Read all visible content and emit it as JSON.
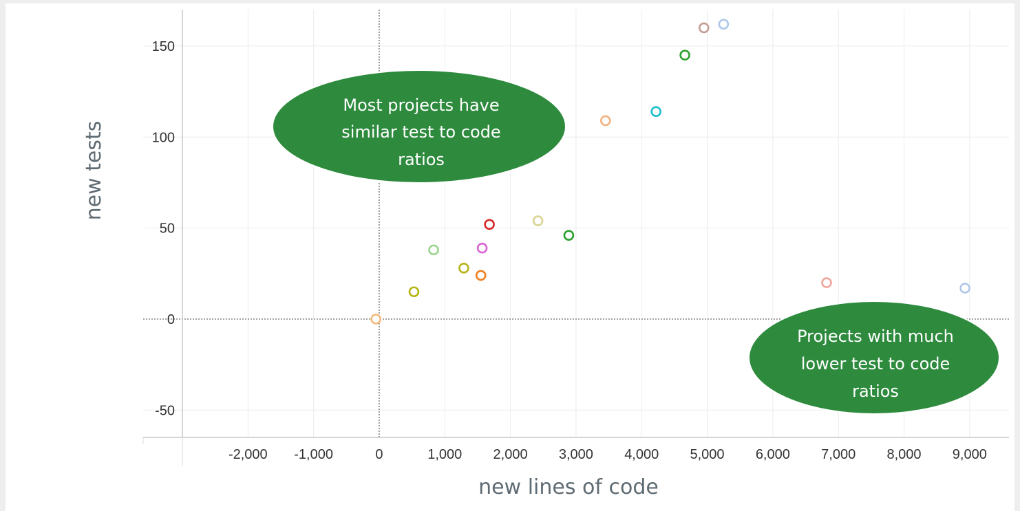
{
  "chart_data": {
    "type": "scatter",
    "xlabel": "new lines of code",
    "ylabel": "new tests",
    "xlim": [
      -3000,
      9600
    ],
    "ylim": [
      -65,
      170
    ],
    "xticks": [
      -2000,
      -1000,
      0,
      1000,
      2000,
      3000,
      4000,
      5000,
      6000,
      7000,
      8000,
      9000
    ],
    "xtick_labels": [
      "-2,000",
      "-1,000",
      "0",
      "1,000",
      "2,000",
      "3,000",
      "4,000",
      "5,000",
      "6,000",
      "7,000",
      "8,000",
      "9,000"
    ],
    "yticks": [
      -50,
      0,
      50,
      100,
      150
    ],
    "ytick_labels": [
      "-50",
      "0",
      "50",
      "100",
      "150"
    ],
    "grid": true,
    "points": [
      {
        "x": -50,
        "y": 0,
        "color": "#f5b87a"
      },
      {
        "x": 530,
        "y": 15,
        "color": "#b5b312"
      },
      {
        "x": 830,
        "y": 38,
        "color": "#9bd48c"
      },
      {
        "x": 1290,
        "y": 28,
        "color": "#b6b316"
      },
      {
        "x": 1550,
        "y": 24,
        "color": "#ef7f1a"
      },
      {
        "x": 1570,
        "y": 39,
        "color": "#d765d4"
      },
      {
        "x": 1680,
        "y": 52,
        "color": "#d62728"
      },
      {
        "x": 2420,
        "y": 54,
        "color": "#d8d393"
      },
      {
        "x": 2890,
        "y": 46,
        "color": "#2ca02c"
      },
      {
        "x": 3450,
        "y": 109,
        "color": "#f3b17e"
      },
      {
        "x": 4220,
        "y": 114,
        "color": "#17becf"
      },
      {
        "x": 4660,
        "y": 145,
        "color": "#2ca02c"
      },
      {
        "x": 4950,
        "y": 160,
        "color": "#c49c94"
      },
      {
        "x": 5250,
        "y": 162,
        "color": "#aec7e8"
      },
      {
        "x": 6820,
        "y": 20,
        "color": "#f0a59a"
      },
      {
        "x": 8930,
        "y": 17,
        "color": "#aec7e8"
      }
    ],
    "annotations": [
      {
        "lines": [
          "Most projects have",
          "similar test to code",
          "ratios"
        ]
      },
      {
        "lines": [
          "Projects with much",
          "lower test to code",
          "ratios"
        ]
      }
    ],
    "callout_color": "#2e8b3e"
  }
}
